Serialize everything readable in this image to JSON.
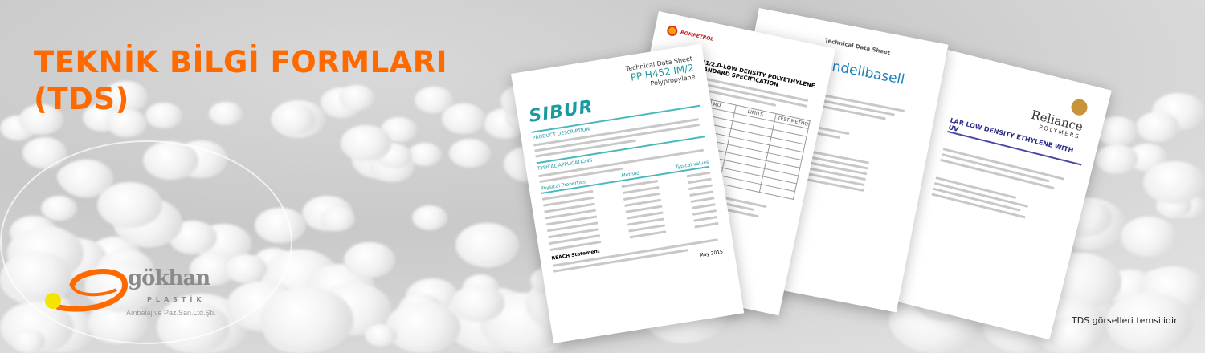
{
  "banner": {
    "title_line1": "TEKNİK BİLGİ FORMLARI",
    "title_line2": "(TDS)",
    "title_color": "#ff6a00",
    "disclaimer": "TDS görselleri temsilidir."
  },
  "logo": {
    "name": "gökhan",
    "sub": "PLASTİK",
    "company": "Ambalaj ve Paz.San.Ltd.Şti.",
    "colors": {
      "swoosh": "#ff6a00",
      "dot": "#f5e400",
      "text": "#8a8a8a"
    }
  },
  "documents": {
    "sibur": {
      "brand": "SIBUR",
      "header": "Technical Data Sheet",
      "product": "PP H452 IM/2",
      "type": "Polypropylene",
      "sections": [
        "PRODUCT DESCRIPTION",
        "TYPICAL APPLICATIONS",
        "Physical Properties"
      ],
      "columns": [
        "Method",
        "Typical values"
      ],
      "footer_left": "REACH Statement",
      "footer_date": "May 2015",
      "accent": "#1b9aa0"
    },
    "rompetrol": {
      "brand": "ROMPETROL",
      "title": "B21/2.0-LOW DENSITY POLYETHYLENE",
      "subtitle": "STANDARD SPECIFICATION",
      "columns": [
        "MU",
        "LIMITS",
        "TEST METHOD"
      ]
    },
    "lyondellbasell": {
      "brand": "lyondellbasell",
      "header": "Technical Data Sheet"
    },
    "reliance": {
      "brand": "Reliance",
      "sub": "POLYMERS",
      "title": "LAR LOW DENSITY ETHYLENE WITH UV"
    }
  }
}
